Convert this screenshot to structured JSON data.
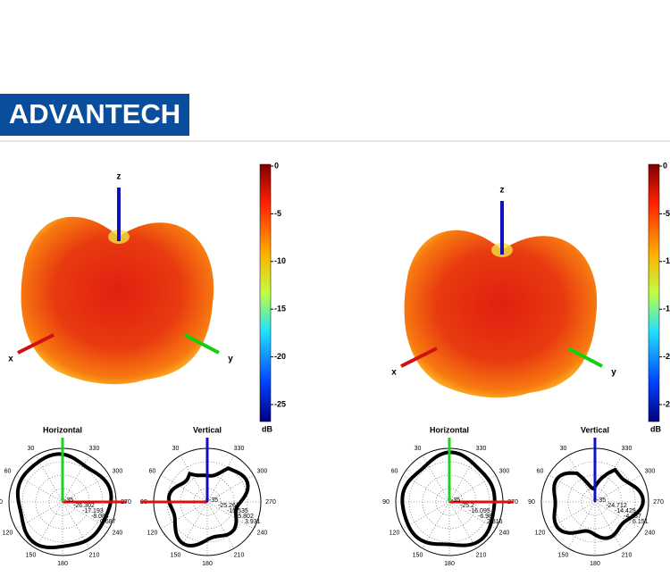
{
  "header": {
    "logo": "ADVANTECH"
  },
  "axis_labels": [
    "x",
    "y",
    "z"
  ],
  "colorbar": {
    "ticks": [
      "0",
      "-5",
      "-10",
      "-15",
      "-20",
      "-25"
    ],
    "unit": "dB"
  },
  "polar_angles": [
    "30",
    "60",
    "90",
    "120",
    "150",
    "180",
    "210",
    "240",
    "270",
    "300",
    "330"
  ],
  "panels": [
    {
      "polars": [
        {
          "title": "Horizontal",
          "labels": [
            "-35",
            "-26.302",
            "-17.193",
            "-8.084",
            "0.687"
          ]
        },
        {
          "title": "Vertical",
          "labels": [
            "-35",
            "-25.267",
            "-15.535",
            "-5.802",
            "3.931"
          ]
        }
      ]
    },
    {
      "polars": [
        {
          "title": "Horizontal",
          "labels": [
            "-35",
            "-25.2",
            "-16.095",
            "-6.98",
            "2.816"
          ]
        },
        {
          "title": "Vertical",
          "labels": [
            "-35",
            "-24.712",
            "-14.425",
            "-4.137",
            "6.151"
          ]
        }
      ]
    }
  ]
}
